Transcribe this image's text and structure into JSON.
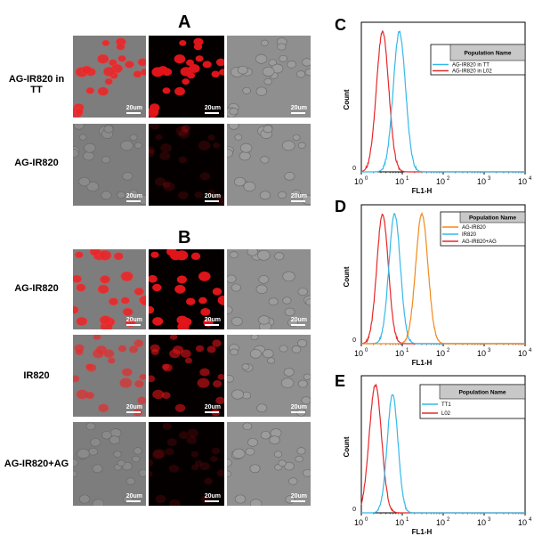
{
  "left": {
    "panel_a": {
      "letter": "A",
      "rows": [
        {
          "label": "AG-IR820 in TT",
          "scale": "20um",
          "intensity": "high"
        },
        {
          "label": "AG-IR820",
          "scale": "20um",
          "intensity": "low"
        }
      ]
    },
    "panel_b": {
      "letter": "B",
      "rows": [
        {
          "label": "AG-IR820",
          "scale": "20um",
          "intensity": "high"
        },
        {
          "label": "IR820",
          "scale": "20um",
          "intensity": "medium"
        },
        {
          "label": "AG-IR820+AG",
          "scale": "20um",
          "intensity": "low"
        }
      ]
    }
  },
  "colors": {
    "red": "#e8282a",
    "cyan": "#35b9e9",
    "orange": "#f08a1c",
    "gray_bg": "#8a8a8a"
  },
  "chart_data": [
    {
      "letter": "C",
      "type": "line",
      "xlabel": "FL1-H",
      "ylabel": "Count",
      "xscale": "log",
      "xlim": [
        1,
        10000
      ],
      "x_ticks": [
        {
          "base": "10",
          "exp": "0"
        },
        {
          "base": "10",
          "exp": "1"
        },
        {
          "base": "10",
          "exp": "2"
        },
        {
          "base": "10",
          "exp": "3"
        },
        {
          "base": "10",
          "exp": "4"
        }
      ],
      "y_tick": "0",
      "legend": {
        "title": "Population Name",
        "placement": "top-right",
        "entries": [
          {
            "name": "AG-IR820 in TT",
            "color": "#35b9e9"
          },
          {
            "name": "AG-IR820 in L02",
            "color": "#e8282a"
          }
        ]
      },
      "series": [
        {
          "name": "AG-IR820 in L02",
          "color": "#e8282a",
          "peak_x": 3.3,
          "height": 0.97,
          "width": 0.15
        },
        {
          "name": "AG-IR820 in TT",
          "color": "#35b9e9",
          "peak_x": 8.5,
          "height": 0.97,
          "width": 0.15
        }
      ]
    },
    {
      "letter": "D",
      "type": "line",
      "xlabel": "FL1-H",
      "ylabel": "Count",
      "xscale": "log",
      "xlim": [
        1,
        10000
      ],
      "x_ticks": [
        {
          "base": "10",
          "exp": "0"
        },
        {
          "base": "10",
          "exp": "1"
        },
        {
          "base": "10",
          "exp": "2"
        },
        {
          "base": "10",
          "exp": "3"
        },
        {
          "base": "10",
          "exp": "4"
        }
      ],
      "y_tick": "0",
      "legend": {
        "title": "Population Name",
        "placement": "top-right",
        "entries": [
          {
            "name": "AG-IR820",
            "color": "#f08a1c"
          },
          {
            "name": "IR820",
            "color": "#35b9e9"
          },
          {
            "name": "AG-IR820+AG",
            "color": "#e8282a"
          }
        ]
      },
      "series": [
        {
          "name": "AG-IR820+AG",
          "color": "#e8282a",
          "peak_x": 3.3,
          "height": 0.97,
          "width": 0.14
        },
        {
          "name": "IR820",
          "color": "#35b9e9",
          "peak_x": 6.5,
          "height": 0.97,
          "width": 0.14
        },
        {
          "name": "AG-IR820",
          "color": "#f08a1c",
          "peak_x": 30,
          "height": 0.97,
          "width": 0.15
        }
      ]
    },
    {
      "letter": "E",
      "type": "line",
      "xlabel": "FL1-H",
      "ylabel": "Count",
      "xscale": "log",
      "xlim": [
        1,
        10000
      ],
      "x_ticks": [
        {
          "base": "10",
          "exp": "0"
        },
        {
          "base": "10",
          "exp": "1"
        },
        {
          "base": "10",
          "exp": "2"
        },
        {
          "base": "10",
          "exp": "3"
        },
        {
          "base": "10",
          "exp": "4"
        }
      ],
      "y_tick": "0",
      "legend": {
        "title": "Population Name",
        "placement": "top-right",
        "entries": [
          {
            "name": "TT1",
            "color": "#35b9e9"
          },
          {
            "name": "L02",
            "color": "#e8282a"
          }
        ]
      },
      "series": [
        {
          "name": "L02",
          "color": "#e8282a",
          "peak_x": 2.2,
          "height": 0.97,
          "width": 0.15
        },
        {
          "name": "TT1",
          "color": "#35b9e9",
          "peak_x": 5.8,
          "height": 0.9,
          "width": 0.13
        }
      ]
    }
  ]
}
